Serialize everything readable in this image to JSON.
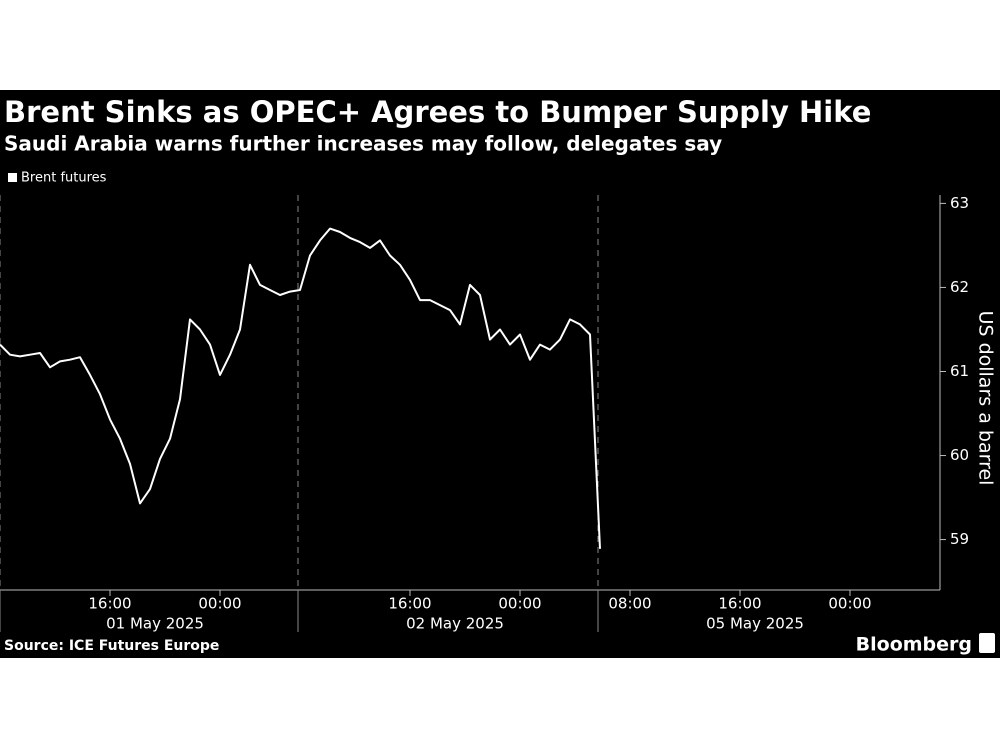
{
  "chart_data": {
    "type": "line",
    "title": "Brent Sinks as OPEC+ Agrees to Bumper Supply Hike",
    "subtitle": "Saudi Arabia warns further increases may follow, delegates say",
    "y_label": "US dollars a barrel",
    "source": "Source: ICE Futures Europe",
    "brand": "Bloomberg",
    "categories": [
      null,
      null,
      null,
      null,
      null,
      null,
      null,
      null,
      null,
      null,
      null,
      "16:00",
      null,
      null,
      null,
      null,
      null,
      null,
      null,
      null,
      null,
      null,
      "00:00",
      null,
      null,
      null,
      null,
      null,
      null,
      null,
      null,
      null,
      null,
      null,
      null,
      null,
      null,
      null,
      null,
      null,
      null,
      "16:00",
      null,
      null,
      null,
      null,
      null,
      null,
      null,
      null,
      null,
      null,
      "00:00",
      null,
      null,
      null,
      null,
      null,
      null,
      null,
      null,
      null,
      null,
      "08:00",
      null,
      null,
      null,
      null,
      null,
      null,
      null,
      null,
      null,
      null,
      "16:00",
      null,
      null,
      null,
      null,
      null,
      null,
      null,
      null,
      null,
      null,
      "00:00",
      null,
      null,
      null,
      null,
      null,
      null,
      null,
      null,
      null
    ],
    "day_labels": [
      "01 May 2025",
      "02 May 2025",
      "05 May 2025"
    ],
    "series": [
      {
        "name": "Brent futures",
        "color": "#ffffff",
        "values": [
          61.32,
          61.2,
          61.18,
          61.2,
          61.22,
          61.05,
          61.12,
          61.14,
          61.17,
          60.96,
          60.73,
          60.43,
          60.2,
          59.9,
          59.43,
          59.6,
          59.96,
          60.2,
          60.67,
          61.62,
          61.5,
          61.32,
          60.96,
          61.2,
          61.5,
          62.27,
          62.03,
          61.97,
          61.91,
          61.95,
          61.97,
          62.38,
          62.56,
          62.7,
          62.66,
          62.59,
          62.54,
          62.47,
          62.56,
          62.38,
          62.27,
          62.09,
          61.85,
          61.85,
          61.79,
          61.73,
          61.56,
          62.03,
          61.91,
          61.38,
          61.5,
          61.32,
          61.44,
          61.14,
          61.32,
          61.26,
          61.38,
          61.62,
          61.56,
          61.44,
          58.89,
          null,
          null,
          null,
          null,
          null,
          null,
          null,
          null,
          null,
          null,
          null,
          null,
          null,
          null,
          null,
          null,
          null,
          null,
          null,
          null,
          null,
          null,
          null,
          null,
          null,
          null,
          null,
          null,
          null,
          null,
          null,
          null,
          null,
          null
        ]
      }
    ],
    "ylim": [
      58.4,
      63.1
    ],
    "yticks": [
      59,
      60,
      61,
      62,
      63
    ]
  }
}
